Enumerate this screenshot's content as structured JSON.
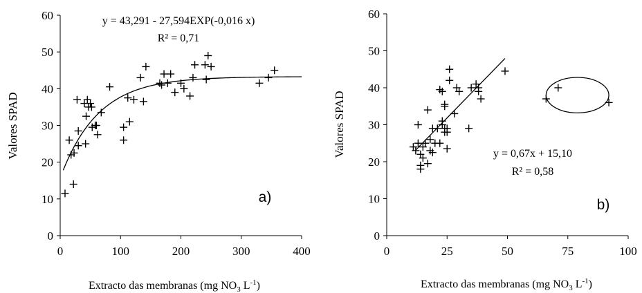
{
  "chart_data": [
    {
      "type": "scatter",
      "panel_label": "a)",
      "xlabel_main": "Extracto das membranas (mg NO",
      "xlabel_sub": "3",
      "xlabel_unit": " L",
      "xlabel_sup": "-1",
      "xlabel_close": ")",
      "ylabel": "Valores SPAD",
      "xlim": [
        0,
        400
      ],
      "ylim": [
        0,
        60
      ],
      "xticks": [
        "0",
        "100",
        "200",
        "300",
        "400"
      ],
      "yticks": [
        "0",
        "10",
        "20",
        "30",
        "40",
        "50",
        "60"
      ],
      "equation": "y = 43,291 - 27,594EXP(-0,016 x)",
      "r2": "R² = 0,71",
      "fit": {
        "model": "exponential",
        "a": 43.291,
        "b": 27.594,
        "k": 0.016,
        "xmin": 5,
        "xmax": 400
      },
      "points": [
        [
          8,
          11.5
        ],
        [
          15,
          26
        ],
        [
          18,
          22
        ],
        [
          22,
          14
        ],
        [
          23,
          22.5
        ],
        [
          28,
          37
        ],
        [
          30,
          24.5
        ],
        [
          30,
          28.5
        ],
        [
          40,
          36
        ],
        [
          42,
          25
        ],
        [
          43,
          32.5
        ],
        [
          45,
          37
        ],
        [
          47,
          35
        ],
        [
          50,
          36
        ],
        [
          52,
          35
        ],
        [
          53,
          29.5
        ],
        [
          58,
          30
        ],
        [
          60,
          30
        ],
        [
          62,
          27.5
        ],
        [
          68,
          33.5
        ],
        [
          82,
          40.5
        ],
        [
          105,
          26
        ],
        [
          105,
          29.5
        ],
        [
          112,
          37.5
        ],
        [
          115,
          31
        ],
        [
          122,
          37
        ],
        [
          133,
          43
        ],
        [
          138,
          36.5
        ],
        [
          142,
          46
        ],
        [
          165,
          41.5
        ],
        [
          168,
          41
        ],
        [
          172,
          44
        ],
        [
          178,
          41.5
        ],
        [
          183,
          44
        ],
        [
          190,
          39
        ],
        [
          200,
          41.5
        ],
        [
          205,
          40
        ],
        [
          215,
          38
        ],
        [
          220,
          43
        ],
        [
          223,
          46.5
        ],
        [
          240,
          46.5
        ],
        [
          242,
          42.5
        ],
        [
          245,
          49
        ],
        [
          250,
          46
        ],
        [
          330,
          41.5
        ],
        [
          345,
          43
        ],
        [
          355,
          45
        ]
      ]
    },
    {
      "type": "scatter",
      "panel_label": "b)",
      "xlabel_main": "Extracto das membranas (mg NO",
      "xlabel_sub": "3",
      "xlabel_unit": " L",
      "xlabel_sup": "-1",
      "xlabel_close": ")",
      "ylabel": "Valores SPAD",
      "xlim": [
        0,
        100
      ],
      "ylim": [
        0,
        60
      ],
      "xticks": [
        "0",
        "25",
        "50",
        "75",
        "100"
      ],
      "yticks": [
        "0",
        "10",
        "20",
        "30",
        "40",
        "50",
        "60"
      ],
      "equation": "y = 0,67x + 15,10",
      "r2": "R² = 0,58",
      "fit": {
        "model": "linear",
        "slope": 0.67,
        "intercept": 15.1,
        "xmin": 12,
        "xmax": 49
      },
      "points": [
        [
          11,
          24
        ],
        [
          12,
          23
        ],
        [
          13,
          30
        ],
        [
          13,
          25
        ],
        [
          14,
          18
        ],
        [
          14,
          19
        ],
        [
          14,
          22
        ],
        [
          15,
          21
        ],
        [
          15,
          24
        ],
        [
          16,
          25
        ],
        [
          17,
          34
        ],
        [
          17,
          19.5
        ],
        [
          18,
          23
        ],
        [
          18,
          26
        ],
        [
          19,
          22.5
        ],
        [
          19,
          29
        ],
        [
          20,
          25
        ],
        [
          21,
          29
        ],
        [
          22,
          25
        ],
        [
          22,
          39.5
        ],
        [
          23,
          30
        ],
        [
          23,
          31
        ],
        [
          23,
          39
        ],
        [
          24,
          29
        ],
        [
          24,
          28
        ],
        [
          24,
          35
        ],
        [
          24,
          35.5
        ],
        [
          25,
          23.5
        ],
        [
          25,
          29
        ],
        [
          25,
          28
        ],
        [
          26,
          45
        ],
        [
          26,
          42
        ],
        [
          28,
          33
        ],
        [
          29,
          40
        ],
        [
          30,
          39
        ],
        [
          34,
          29
        ],
        [
          35,
          40
        ],
        [
          37,
          41
        ],
        [
          38,
          40
        ],
        [
          38,
          39
        ],
        [
          39,
          37
        ],
        [
          49,
          44.5
        ],
        [
          66,
          37
        ],
        [
          71,
          40
        ],
        [
          92,
          36
        ]
      ],
      "ellipse": {
        "cx": 79,
        "cy": 38,
        "rx": 13,
        "ry": 4.8
      }
    }
  ]
}
